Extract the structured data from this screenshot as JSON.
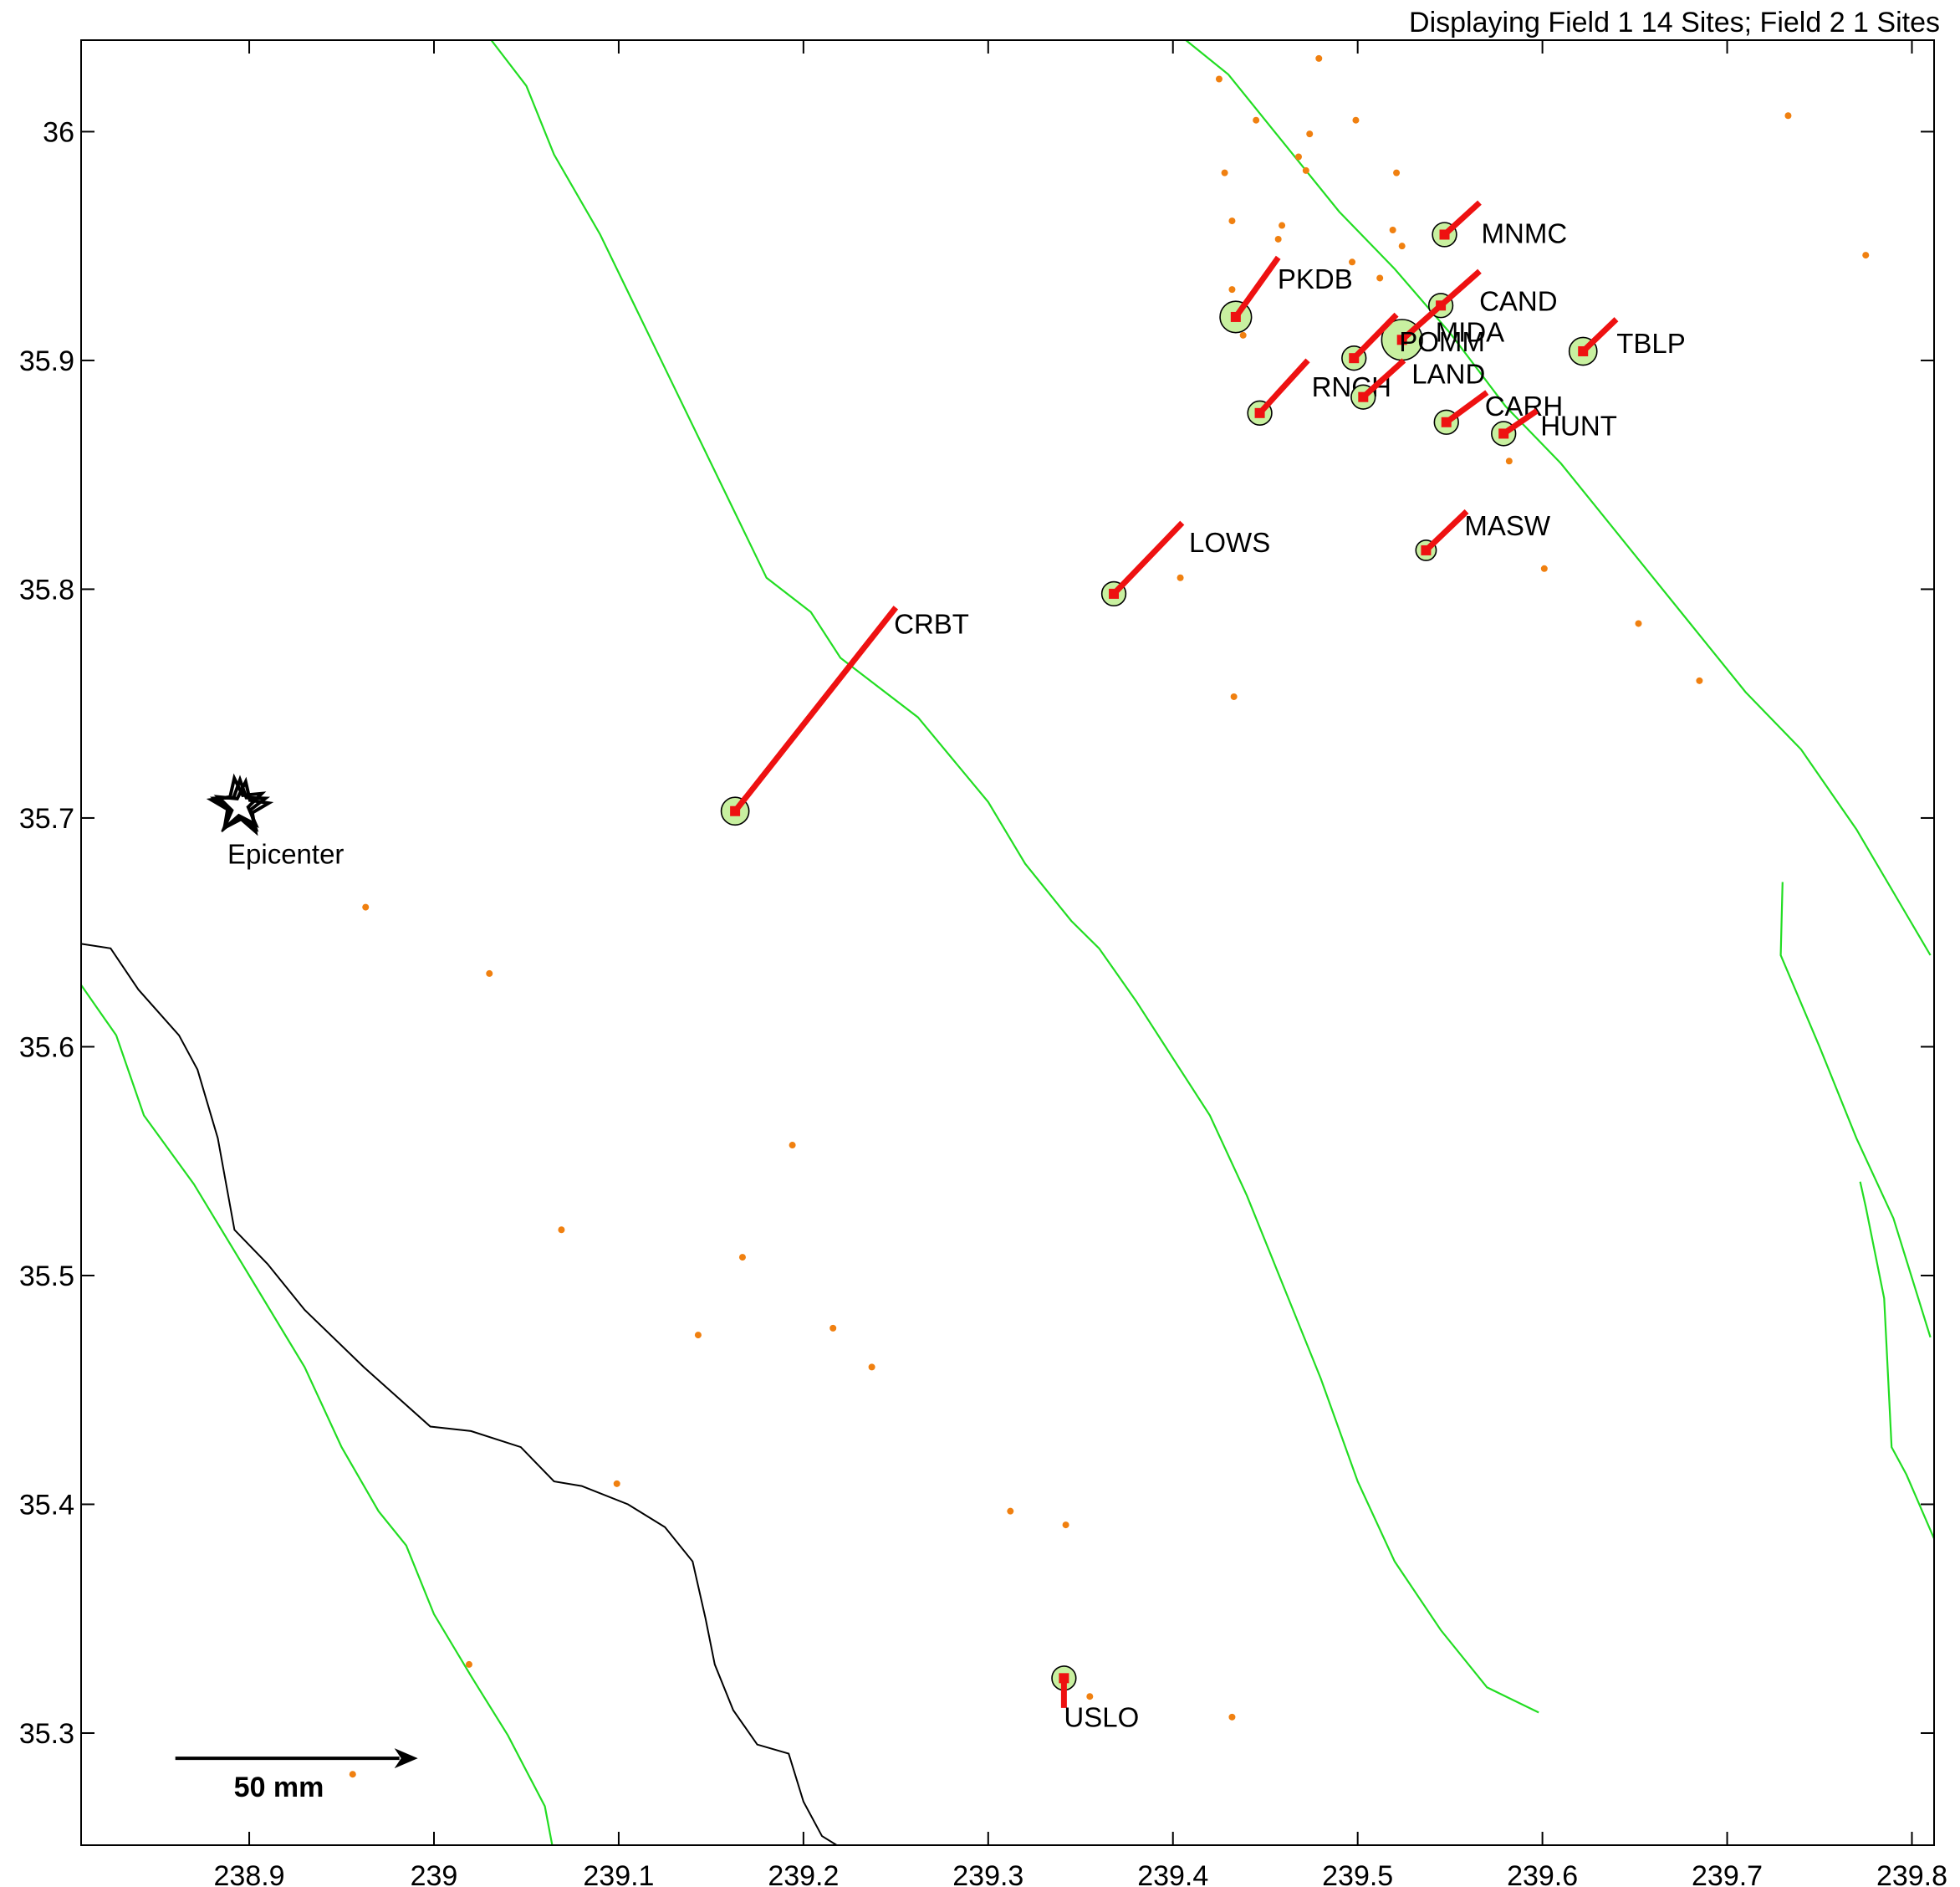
{
  "header": {
    "text": "Displaying Field 1 14 Sites; Field 2 1 Sites"
  },
  "axes": {
    "xlim": [
      238.809,
      239.812
    ],
    "ylim": [
      35.251,
      36.04
    ],
    "x_ticks": [
      238.9,
      239.0,
      239.1,
      239.2,
      239.3,
      239.4,
      239.5,
      239.6,
      239.7,
      239.8
    ],
    "x_tick_labels": [
      "238.9",
      "239",
      "239.1",
      "239.2",
      "239.3",
      "239.4",
      "239.5",
      "239.6",
      "239.7",
      "239.8"
    ],
    "y_ticks": [
      36.0,
      35.9,
      35.8,
      35.7,
      35.6,
      35.5,
      35.4,
      35.3
    ],
    "y_tick_labels": [
      "36",
      "35.9",
      "35.8",
      "35.7",
      "35.6",
      "35.5",
      "35.4",
      "35.3"
    ]
  },
  "epicenter": {
    "label": "Epicenter",
    "lon": 238.895,
    "lat": 35.705
  },
  "scale_bar": {
    "label": "50 mm",
    "length_mm": 50,
    "lon_start": 238.86,
    "lat": 35.289
  },
  "colors": {
    "fault": "#22dd22",
    "coast": "#000000",
    "vector": "#ee1111",
    "site_fill": "#c8f0a0",
    "station": "#f08010"
  },
  "sites": [
    {
      "name": "MNMC",
      "lon": 239.547,
      "lat": 35.955,
      "tip": [
        239.566,
        35.969
      ],
      "r": 0.0065
    },
    {
      "name": "PKDB",
      "lon": 239.434,
      "lat": 35.919,
      "tip": [
        239.457,
        35.945
      ],
      "r": 0.0085
    },
    {
      "name": "CAND",
      "lon": 239.545,
      "lat": 35.924,
      "tip": [
        239.566,
        35.939
      ],
      "r": 0.0065
    },
    {
      "name": "MIDA",
      "lon": 239.524,
      "lat": 35.909,
      "tip": [
        239.545,
        35.924
      ],
      "r": 0.011
    },
    {
      "name": "POMM",
      "lon": 239.498,
      "lat": 35.901,
      "tip": [
        239.521,
        35.92
      ],
      "r": 0.0065
    },
    {
      "name": "TBLP",
      "lon": 239.622,
      "lat": 35.904,
      "tip": [
        239.64,
        35.918
      ],
      "r": 0.0075
    },
    {
      "name": "RNCH",
      "lon": 239.447,
      "lat": 35.877,
      "tip": [
        239.473,
        35.9
      ],
      "r": 0.0065
    },
    {
      "name": "LAND",
      "lon": 239.503,
      "lat": 35.884,
      "tip": [
        239.525,
        35.9
      ],
      "r": 0.0065
    },
    {
      "name": "CARH",
      "lon": 239.548,
      "lat": 35.873,
      "tip": [
        239.57,
        35.886
      ],
      "r": 0.0065
    },
    {
      "name": "HUNT",
      "lon": 239.579,
      "lat": 35.868,
      "tip": [
        239.597,
        35.878
      ],
      "r": 0.0065
    },
    {
      "name": "MASW",
      "lon": 239.537,
      "lat": 35.817,
      "tip": [
        239.559,
        35.834
      ],
      "r": 0.0055
    },
    {
      "name": "LOWS",
      "lon": 239.368,
      "lat": 35.798,
      "tip": [
        239.405,
        35.829
      ],
      "r": 0.0065
    },
    {
      "name": "CRBT",
      "lon": 239.163,
      "lat": 35.703,
      "tip": [
        239.25,
        35.792
      ],
      "r": 0.0075
    },
    {
      "name": "USLO",
      "lon": 239.341,
      "lat": 35.324,
      "tip": [
        239.341,
        35.311
      ],
      "r": 0.0065
    }
  ],
  "stations": [
    [
      239.425,
      36.023
    ],
    [
      239.479,
      36.032
    ],
    [
      239.445,
      36.005
    ],
    [
      239.499,
      36.005
    ],
    [
      239.474,
      35.999
    ],
    [
      239.468,
      35.989
    ],
    [
      239.428,
      35.982
    ],
    [
      239.472,
      35.983
    ],
    [
      239.521,
      35.982
    ],
    [
      239.432,
      35.961
    ],
    [
      239.459,
      35.959
    ],
    [
      239.519,
      35.957
    ],
    [
      239.524,
      35.95
    ],
    [
      239.457,
      35.953
    ],
    [
      239.497,
      35.943
    ],
    [
      239.512,
      35.936
    ],
    [
      239.432,
      35.931
    ],
    [
      239.438,
      35.911
    ],
    [
      239.733,
      36.007
    ],
    [
      239.775,
      35.946
    ],
    [
      239.582,
      35.856
    ],
    [
      239.601,
      35.809
    ],
    [
      239.404,
      35.805
    ],
    [
      239.652,
      35.785
    ],
    [
      239.685,
      35.76
    ],
    [
      239.433,
      35.753
    ],
    [
      238.963,
      35.661
    ],
    [
      239.03,
      35.632
    ],
    [
      239.194,
      35.557
    ],
    [
      239.069,
      35.52
    ],
    [
      239.167,
      35.508
    ],
    [
      239.143,
      35.474
    ],
    [
      239.216,
      35.477
    ],
    [
      239.237,
      35.46
    ],
    [
      239.099,
      35.409
    ],
    [
      239.312,
      35.397
    ],
    [
      239.342,
      35.391
    ],
    [
      239.355,
      35.316
    ],
    [
      239.432,
      35.307
    ],
    [
      239.019,
      35.33
    ],
    [
      238.956,
      35.282
    ]
  ],
  "faults": [
    [
      [
        239.031,
        36.04
      ],
      [
        239.05,
        36.02
      ],
      [
        239.065,
        35.99
      ],
      [
        239.09,
        35.955
      ],
      [
        239.12,
        35.905
      ],
      [
        239.15,
        35.855
      ],
      [
        239.18,
        35.805
      ],
      [
        239.204,
        35.79
      ],
      [
        239.22,
        35.77
      ],
      [
        239.262,
        35.744
      ],
      [
        239.3,
        35.707
      ],
      [
        239.32,
        35.68
      ],
      [
        239.345,
        35.655
      ],
      [
        239.36,
        35.643
      ],
      [
        239.38,
        35.62
      ],
      [
        239.4,
        35.595
      ],
      [
        239.42,
        35.57
      ],
      [
        239.44,
        35.535
      ],
      [
        239.46,
        35.495
      ],
      [
        239.48,
        35.455
      ],
      [
        239.5,
        35.41
      ],
      [
        239.52,
        35.375
      ],
      [
        239.545,
        35.345
      ],
      [
        239.57,
        35.32
      ],
      [
        239.598,
        35.309
      ]
    ],
    [
      [
        239.407,
        36.04
      ],
      [
        239.43,
        36.025
      ],
      [
        239.46,
        35.995
      ],
      [
        239.49,
        35.965
      ],
      [
        239.52,
        35.94
      ],
      [
        239.55,
        35.912
      ],
      [
        239.58,
        35.88
      ],
      [
        239.61,
        35.855
      ],
      [
        239.65,
        35.815
      ],
      [
        239.68,
        35.785
      ],
      [
        239.71,
        35.755
      ],
      [
        239.74,
        35.73
      ],
      [
        239.77,
        35.695
      ],
      [
        239.81,
        35.64
      ]
    ],
    [
      [
        238.809,
        35.627
      ],
      [
        238.828,
        35.605
      ],
      [
        238.843,
        35.57
      ],
      [
        238.87,
        35.54
      ],
      [
        238.9,
        35.5
      ],
      [
        238.93,
        35.46
      ],
      [
        238.95,
        35.425
      ],
      [
        238.97,
        35.397
      ],
      [
        238.985,
        35.382
      ],
      [
        239.0,
        35.352
      ],
      [
        239.02,
        35.325
      ],
      [
        239.04,
        35.299
      ],
      [
        239.06,
        35.268
      ],
      [
        239.064,
        35.251
      ]
    ],
    [
      [
        239.73,
        35.672
      ],
      [
        239.729,
        35.64
      ],
      [
        239.75,
        35.6
      ],
      [
        239.77,
        35.56
      ],
      [
        239.79,
        35.525
      ],
      [
        239.81,
        35.473
      ]
    ],
    [
      [
        239.772,
        35.541
      ],
      [
        239.775,
        35.53
      ],
      [
        239.785,
        35.49
      ],
      [
        239.789,
        35.425
      ],
      [
        239.797,
        35.413
      ],
      [
        239.812,
        35.385
      ]
    ]
  ],
  "coastline": [
    [
      238.809,
      35.645
    ],
    [
      238.825,
      35.643
    ],
    [
      238.84,
      35.625
    ],
    [
      238.862,
      35.605
    ],
    [
      238.872,
      35.59
    ],
    [
      238.883,
      35.56
    ],
    [
      238.892,
      35.52
    ],
    [
      238.91,
      35.505
    ],
    [
      238.93,
      35.485
    ],
    [
      238.962,
      35.46
    ],
    [
      238.998,
      35.434
    ],
    [
      239.02,
      35.432
    ],
    [
      239.047,
      35.425
    ],
    [
      239.065,
      35.41
    ],
    [
      239.08,
      35.408
    ],
    [
      239.105,
      35.4
    ],
    [
      239.125,
      35.39
    ],
    [
      239.14,
      35.375
    ],
    [
      239.147,
      35.35
    ],
    [
      239.152,
      35.33
    ],
    [
      239.162,
      35.31
    ],
    [
      239.175,
      35.295
    ],
    [
      239.192,
      35.291
    ],
    [
      239.2,
      35.27
    ],
    [
      239.21,
      35.255
    ],
    [
      239.22,
      35.25
    ],
    [
      239.231,
      35.251
    ]
  ]
}
